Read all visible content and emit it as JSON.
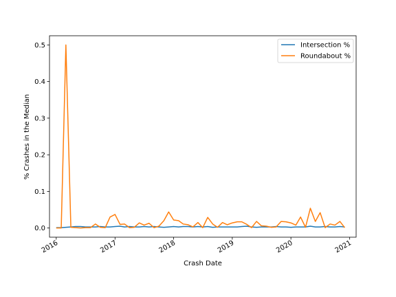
{
  "chart_data": {
    "type": "line",
    "title": "",
    "xlabel": "Crash Date",
    "ylabel": "% Crashes in the Median",
    "x_tick_labels": [
      "2016",
      "2017",
      "2018",
      "2019",
      "2020",
      "2021"
    ],
    "x_tick_years": [
      2016,
      2017,
      2018,
      2019,
      2020,
      2021
    ],
    "y_tick_labels": [
      "0.0",
      "0.1",
      "0.2",
      "0.3",
      "0.4",
      "0.5"
    ],
    "y_tick_values": [
      0.0,
      0.1,
      0.2,
      0.3,
      0.4,
      0.5
    ],
    "ylim": [
      -0.025,
      0.525
    ],
    "xlim": [
      "2015-11-20",
      "2021-02-10"
    ],
    "grid": false,
    "legend_position": "top-right",
    "x": [
      "2016-01",
      "2016-02",
      "2016-03",
      "2016-04",
      "2016-05",
      "2016-06",
      "2016-07",
      "2016-08",
      "2016-09",
      "2016-10",
      "2016-11",
      "2016-12",
      "2017-01",
      "2017-02",
      "2017-03",
      "2017-04",
      "2017-05",
      "2017-06",
      "2017-07",
      "2017-08",
      "2017-09",
      "2017-10",
      "2017-11",
      "2017-12",
      "2018-01",
      "2018-02",
      "2018-03",
      "2018-04",
      "2018-05",
      "2018-06",
      "2018-07",
      "2018-08",
      "2018-09",
      "2018-10",
      "2018-11",
      "2018-12",
      "2019-01",
      "2019-02",
      "2019-03",
      "2019-04",
      "2019-05",
      "2019-06",
      "2019-07",
      "2019-08",
      "2019-09",
      "2019-10",
      "2019-11",
      "2019-12",
      "2020-01",
      "2020-02",
      "2020-03",
      "2020-04",
      "2020-05",
      "2020-06",
      "2020-07",
      "2020-08",
      "2020-09",
      "2020-10",
      "2020-11",
      "2020-12"
    ],
    "series": [
      {
        "name": "Intersection %",
        "color": "#1f77b4",
        "values": [
          0.001,
          0.001,
          0.002,
          0.003,
          0.004,
          0.004,
          0.003,
          0.003,
          0.003,
          0.004,
          0.003,
          0.003,
          0.004,
          0.005,
          0.003,
          0.004,
          0.003,
          0.003,
          0.004,
          0.003,
          0.004,
          0.003,
          0.002,
          0.003,
          0.004,
          0.003,
          0.004,
          0.004,
          0.003,
          0.004,
          0.003,
          0.004,
          0.002,
          0.003,
          0.003,
          0.003,
          0.003,
          0.003,
          0.004,
          0.005,
          0.003,
          0.002,
          0.003,
          0.003,
          0.003,
          0.004,
          0.003,
          0.003,
          0.002,
          0.003,
          0.003,
          0.003,
          0.005,
          0.003,
          0.003,
          0.004,
          0.003,
          0.003,
          0.004,
          0.003
        ]
      },
      {
        "name": "Roundabout %",
        "color": "#ff7f0e",
        "values": [
          0.0,
          0.0,
          0.5,
          0.002,
          0.001,
          0.0,
          0.001,
          0.001,
          0.011,
          0.002,
          0.001,
          0.03,
          0.037,
          0.01,
          0.011,
          0.001,
          0.002,
          0.014,
          0.008,
          0.013,
          0.001,
          0.005,
          0.02,
          0.044,
          0.022,
          0.02,
          0.011,
          0.009,
          0.003,
          0.015,
          0.001,
          0.029,
          0.011,
          0.002,
          0.015,
          0.009,
          0.014,
          0.017,
          0.017,
          0.01,
          0.001,
          0.018,
          0.006,
          0.005,
          0.002,
          0.003,
          0.018,
          0.017,
          0.014,
          0.008,
          0.03,
          0.002,
          0.054,
          0.018,
          0.042,
          0.001,
          0.011,
          0.008,
          0.018,
          0.001
        ]
      }
    ]
  }
}
